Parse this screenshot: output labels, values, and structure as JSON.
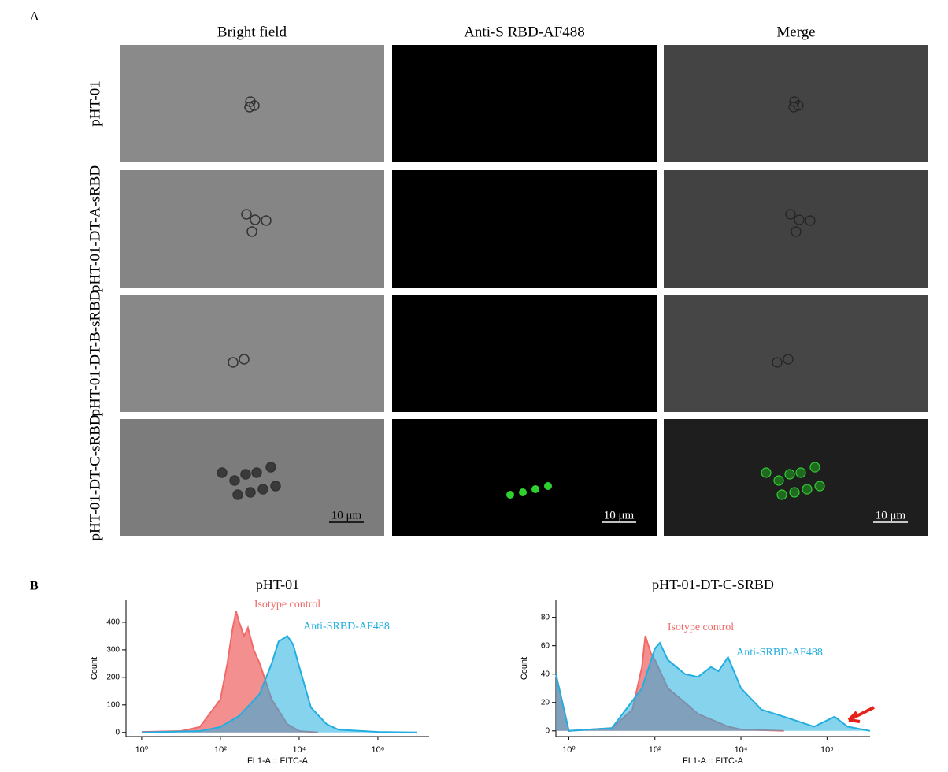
{
  "panel_a": {
    "label": "A",
    "columns": [
      "Bright field",
      "Anti-S RBD-AF488",
      "Merge"
    ],
    "rows": [
      "pHT-01",
      "pHT-01-DT-A-sRBD",
      "pHT-01-DT-B-sRBD",
      "pHT-01-DT-C-sRBD"
    ],
    "scale_bars": [
      "10 μm",
      "10 μm",
      "10 μm"
    ]
  },
  "panel_b": {
    "label": "B"
  },
  "chart_data": [
    {
      "type": "area",
      "title": "pHT-01",
      "x_label": "FL1-A :: FITC-A",
      "y_label": "Count",
      "xscale": "log",
      "xlim": [
        0.4,
        20000000
      ],
      "ylim": [
        -15,
        480
      ],
      "xticks": [
        {
          "value": 1,
          "label": "10⁰"
        },
        {
          "value": 100,
          "label": "10²"
        },
        {
          "value": 10000,
          "label": "10⁴"
        },
        {
          "value": 1000000,
          "label": "10⁶"
        }
      ],
      "yticks": [
        0,
        100,
        200,
        300,
        400
      ],
      "series": [
        {
          "name": "Isotype control",
          "color": "#f06a6a",
          "x": [
            1,
            10,
            30,
            100,
            150,
            200,
            250,
            300,
            400,
            500,
            700,
            1000,
            2000,
            5000,
            10000,
            30000
          ],
          "values": [
            2,
            5,
            20,
            120,
            250,
            370,
            440,
            400,
            350,
            380,
            300,
            250,
            120,
            30,
            5,
            0
          ]
        },
        {
          "name": "Anti-SRBD-AF488",
          "color": "#22aee0",
          "x": [
            1,
            30,
            100,
            300,
            1000,
            2000,
            3000,
            5000,
            7000,
            10000,
            20000,
            50000,
            100000,
            1000000,
            10000000
          ],
          "values": [
            0,
            5,
            20,
            60,
            140,
            250,
            330,
            350,
            320,
            240,
            90,
            30,
            10,
            2,
            0
          ]
        }
      ]
    },
    {
      "type": "area",
      "title": "pHT-01-DT-C-SRBD",
      "x_label": "FL1-A :: FITC-A",
      "y_label": "Count",
      "xscale": "log",
      "xlim": [
        0.5,
        10000000
      ],
      "ylim": [
        -4,
        92
      ],
      "xticks": [
        {
          "value": 1,
          "label": "10⁰"
        },
        {
          "value": 100,
          "label": "10²"
        },
        {
          "value": 10000,
          "label": "10⁴"
        },
        {
          "value": 1000000,
          "label": "10⁶"
        }
      ],
      "yticks": [
        0,
        20,
        40,
        60,
        80
      ],
      "series": [
        {
          "name": "Isotype control",
          "color": "#f06a6a",
          "x": [
            0.5,
            1,
            10,
            30,
            50,
            60,
            80,
            100,
            200,
            500,
            1000,
            5000,
            10000,
            100000
          ],
          "values": [
            40,
            0,
            2,
            15,
            45,
            67,
            55,
            50,
            30,
            20,
            12,
            3,
            1,
            0
          ]
        },
        {
          "name": "Anti-SRBD-AF488",
          "color": "#22aee0",
          "x": [
            0.5,
            1,
            10,
            50,
            100,
            130,
            200,
            500,
            1000,
            2000,
            3000,
            5000,
            10000,
            30000,
            100000,
            500000,
            1500000,
            3000000,
            10000000
          ],
          "values": [
            40,
            0,
            2,
            30,
            58,
            62,
            50,
            40,
            38,
            45,
            42,
            52,
            30,
            15,
            10,
            3,
            10,
            3,
            0
          ]
        }
      ]
    }
  ]
}
